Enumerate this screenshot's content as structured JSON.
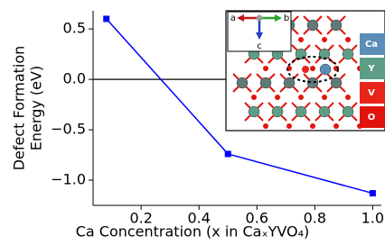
{
  "chart_data": {
    "type": "line",
    "xlabel": "Ca Concentration (x in CaₓYVO₄)",
    "ylabel": [
      "Defect Formation",
      "Energy (eV)"
    ],
    "x": [
      0.08,
      0.5,
      1.0
    ],
    "series": [
      {
        "color": "#0000ff",
        "values": [
          0.6,
          -0.74,
          -1.13
        ]
      }
    ],
    "xlim": [
      0.034,
      1.03
    ],
    "ylim": [
      -1.25,
      0.68
    ],
    "xticks": [
      {
        "value": 0.2,
        "label": "0.2"
      },
      {
        "value": 0.4,
        "label": "0.4"
      },
      {
        "value": 0.6,
        "label": "0.6"
      },
      {
        "value": 0.8,
        "label": "0.8"
      },
      {
        "value": 1.0,
        "label": "1.0"
      }
    ],
    "yticks": [
      {
        "value": 0.5,
        "label": "0.5"
      },
      {
        "value": 0,
        "label": "0.0"
      },
      {
        "value": -0.5,
        "label": "−0.5"
      },
      {
        "value": -1.0,
        "label": "−1.0"
      }
    ],
    "zero_line": true,
    "inset": {
      "axes": [
        "a",
        "b",
        "c"
      ],
      "legend": [
        {
          "name": "Ca",
          "color": "#5b8db8"
        },
        {
          "name": "Y",
          "color": "#5e9e86"
        },
        {
          "name": "V",
          "color": "#e8251b"
        },
        {
          "name": "O",
          "color": "#e0140c"
        }
      ]
    }
  }
}
